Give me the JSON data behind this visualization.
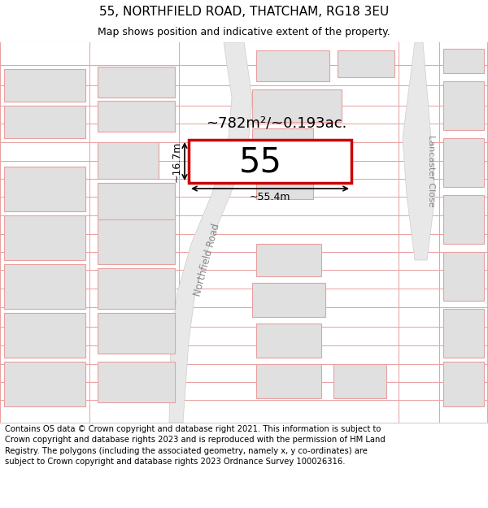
{
  "title_line1": "55, NORTHFIELD ROAD, THATCHAM, RG18 3EU",
  "title_line2": "Map shows position and indicative extent of the property.",
  "footer_text": "Contains OS data © Crown copyright and database right 2021. This information is subject to Crown copyright and database rights 2023 and is reproduced with the permission of HM Land Registry. The polygons (including the associated geometry, namely x, y co-ordinates) are subject to Crown copyright and database rights 2023 Ordnance Survey 100026316.",
  "map_bg": "#ffffff",
  "highlighted_plot_fill": "#ffffff",
  "highlighted_plot_edge": "#cc0000",
  "other_plot_fill": "#e0e0e0",
  "other_plot_edge": "#e8a0a0",
  "road_fill": "#e8e8e8",
  "road_edge": "#bbbbbb",
  "boundary_line_color": "#e8a0a0",
  "dim_line_color": "#000000",
  "area_text": "~782m²/~0.193ac.",
  "number_text": "55",
  "dim_width": "~55.4m",
  "dim_height": "~16.7m",
  "road_label": "Northfield Road",
  "close_label": "Lancaster Close",
  "title_fontsize": 11,
  "subtitle_fontsize": 9,
  "footer_fontsize": 7.2
}
